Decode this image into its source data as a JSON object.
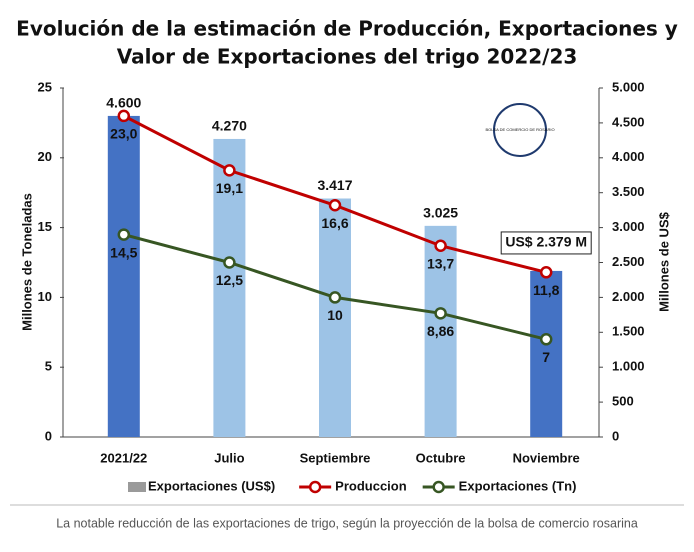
{
  "chart_data": {
    "type": "combo",
    "title": [
      "Evolución de la estimación de Producción, Exportaciones y",
      "Valor de Exportaciones del trigo 2022/23"
    ],
    "categories": [
      "2021/22",
      "Julio",
      "Septiembre",
      "Octubre",
      "Noviembre"
    ],
    "ylabel": "Millones de Toneladas",
    "y2label": "Millones de US$",
    "ylim": [
      0,
      25
    ],
    "yticks": [
      0,
      5,
      10,
      15,
      20,
      25
    ],
    "y2lim": [
      0,
      5000
    ],
    "y2ticks": [
      0,
      500,
      {
        "value": 1000,
        "label": "1.000"
      },
      {
        "value": 1500,
        "label": "1.500"
      },
      {
        "value": 2000,
        "label": "2.000"
      },
      {
        "value": 2500,
        "label": "2.500"
      },
      {
        "value": 3000,
        "label": "3.000"
      },
      {
        "value": 3500,
        "label": "3.500"
      },
      {
        "value": 4000,
        "label": "4.000"
      },
      {
        "value": 4500,
        "label": "4.500"
      },
      {
        "value": 5000,
        "label": "5.000"
      }
    ],
    "series": [
      {
        "name": "Exportaciones (US$)",
        "type": "bar",
        "axis": "y2",
        "color": "#9a9a9a",
        "colors": [
          "#4472c4",
          "#9dc3e6",
          "#9dc3e6",
          "#9dc3e6",
          "#4472c4"
        ],
        "values": [
          4600,
          4270,
          3417,
          3025,
          2379
        ],
        "value_labels": [
          "4.600",
          "4.270",
          "3.417",
          "3.025",
          "US$ 2.379 M"
        ]
      },
      {
        "name": "Produccion",
        "type": "line",
        "color": "#c00000",
        "values": [
          23.0,
          19.1,
          16.6,
          13.7,
          11.8
        ],
        "value_labels": [
          "23,0",
          "19,1",
          "16,6",
          "13,7",
          "11,8"
        ]
      },
      {
        "name": "Exportaciones (Tn)",
        "type": "line",
        "color": "#375623",
        "values": [
          14.5,
          12.5,
          10,
          8.86,
          7
        ],
        "value_labels": [
          "14,5",
          "12,5",
          "10",
          "8,86",
          "7"
        ]
      }
    ],
    "logo_text": "BOLSA DE COMERCIO DE ROSARIO"
  },
  "caption": "La notable reducción de las exportaciones de trigo, según la proyección de la bolsa de comercio rosarina"
}
